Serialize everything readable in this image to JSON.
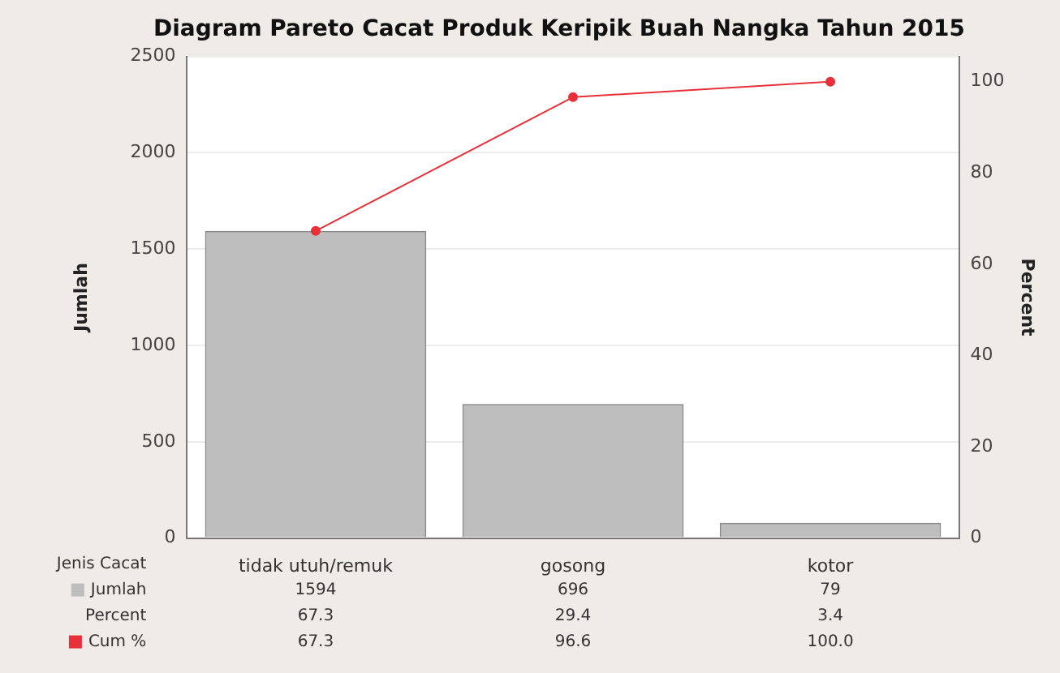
{
  "chart_data": {
    "type": "bar",
    "title": "Diagram Pareto Cacat Produk Keripik Buah Nangka Tahun 2015",
    "xlabel": "Jenis Cacat",
    "ylabel": "Jumlah",
    "y2label": "Percent",
    "categories": [
      "tidak utuh/remuk",
      "gosong",
      "kotor"
    ],
    "series": [
      {
        "name": "Jumlah",
        "color": "#bebebe",
        "values": [
          1594,
          696,
          79
        ],
        "value_labels": [
          "1594",
          "696",
          "79"
        ]
      },
      {
        "name": "Cum %",
        "type": "line",
        "axis": "y2",
        "color": "#e8303a",
        "values": [
          67.3,
          96.6,
          100.0
        ],
        "value_labels": [
          "67.3",
          "96.6",
          "100.0"
        ]
      }
    ],
    "annotations": [
      "Percent",
      "67.3",
      "29.4",
      "3.4"
    ],
    "marker": "circle",
    "line_style": "solid",
    "grid": "y",
    "legend": "bottom left",
    "ylim": [
      0,
      2500
    ],
    "yticks": [
      0,
      500,
      1000,
      1500,
      2000,
      2500
    ],
    "y2lim": [
      0,
      105.53
    ],
    "y2ticks": [
      0,
      20,
      40,
      60,
      80,
      100
    ]
  }
}
